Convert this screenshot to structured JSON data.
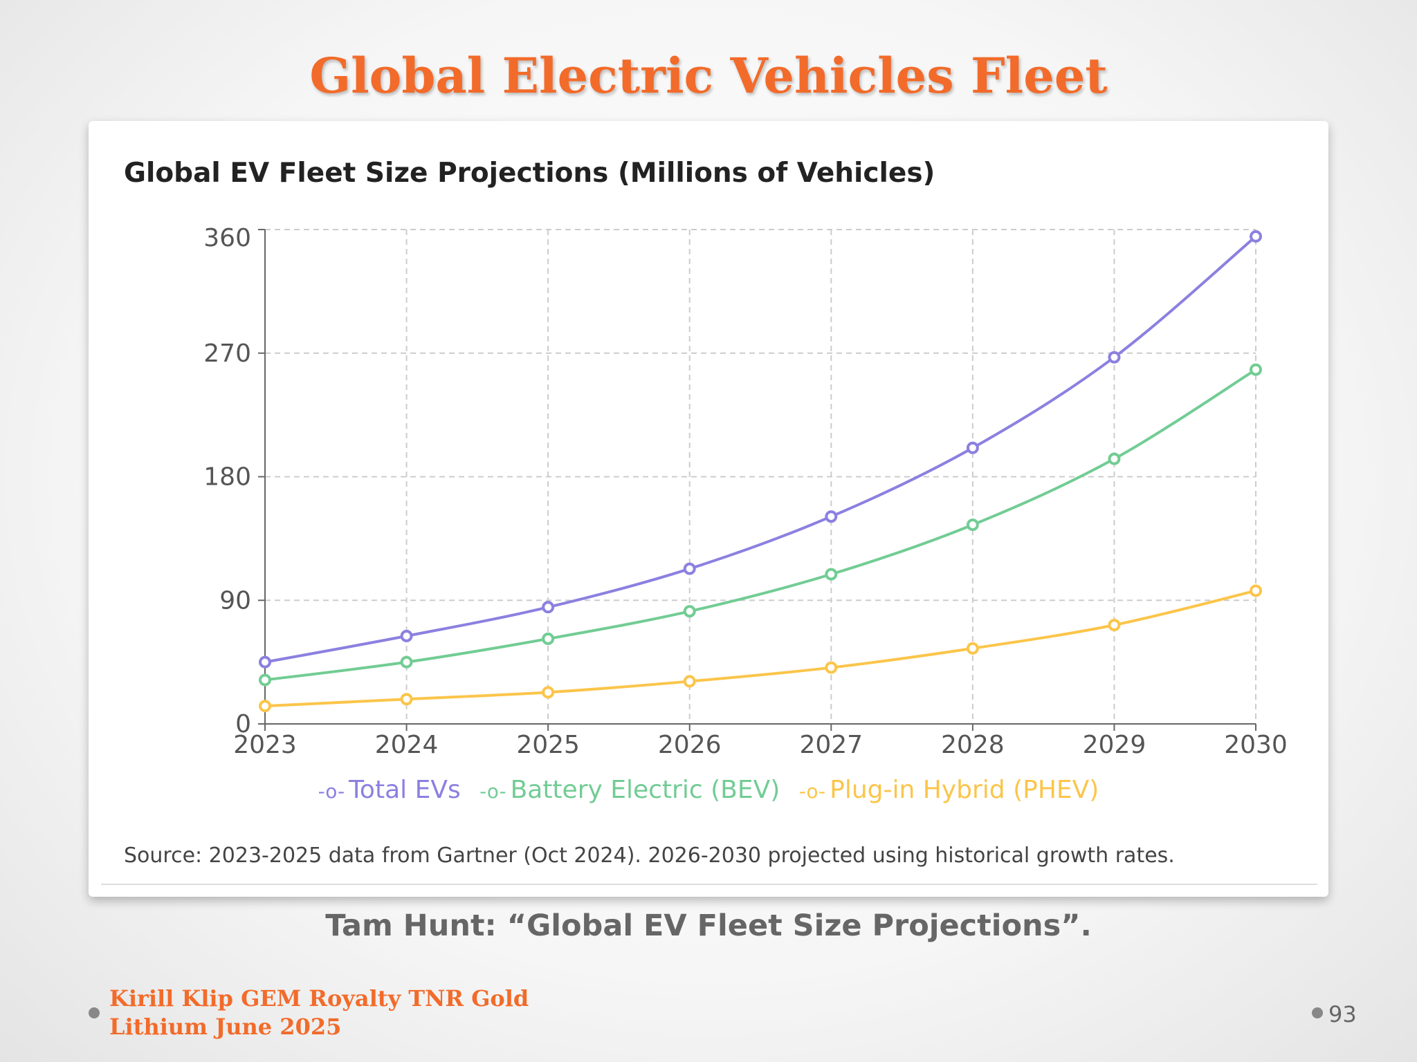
{
  "slide": {
    "title": "Global Electric Vehicles Fleet",
    "caption": "Tam Hunt: “Global EV Fleet Size Projections”.",
    "footer_line1": "Kirill Klip GEM Royalty TNR Gold",
    "footer_line2": "Lithium June 2025",
    "page_number": "93"
  },
  "chart_data": {
    "type": "line",
    "title": "Global EV Fleet Size Projections (Millions of Vehicles)",
    "x": [
      "2023",
      "2024",
      "2025",
      "2026",
      "2027",
      "2028",
      "2029",
      "2030"
    ],
    "yticks": [
      "0",
      "90",
      "180",
      "270",
      "360"
    ],
    "ylim": [
      0,
      360
    ],
    "grid": true,
    "legend_position": "bottom",
    "series": [
      {
        "name": "Total EVs",
        "color": "#8b80e0",
        "values": [
          45,
          64,
          85,
          113,
          151,
          201,
          267,
          355
        ]
      },
      {
        "name": "Battery Electric (BEV)",
        "color": "#72cc94",
        "values": [
          32,
          45,
          62,
          82,
          109,
          145,
          193,
          258
        ]
      },
      {
        "name": "Plug-in Hybrid (PHEV)",
        "color": "#fbc54a",
        "values": [
          13,
          18,
          23,
          31,
          41,
          55,
          72,
          97
        ]
      }
    ],
    "source": "Source: 2023-2025 data from Gartner (Oct 2024). 2026-2030 projected using historical growth rates."
  }
}
